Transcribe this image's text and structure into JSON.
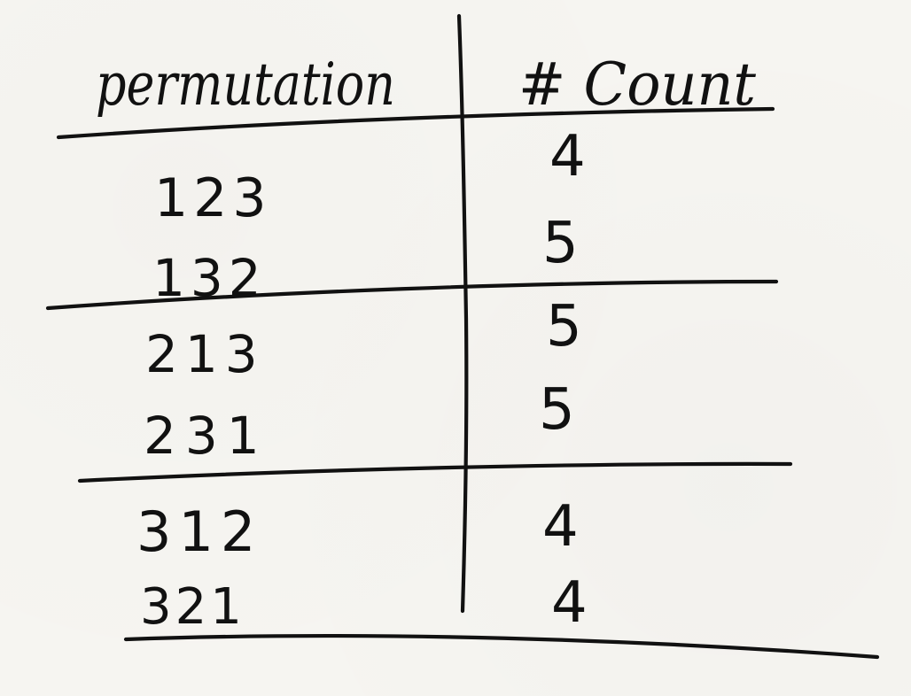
{
  "table": {
    "headers": {
      "permutation": "permutation",
      "count": "# Count"
    },
    "rows": [
      {
        "permutation": "123",
        "count": "4"
      },
      {
        "permutation": "132",
        "count": "5"
      },
      {
        "permutation": "213",
        "count": "5"
      },
      {
        "permutation": "231",
        "count": "5"
      },
      {
        "permutation": "312",
        "count": "4"
      },
      {
        "permutation": "321",
        "count": "4"
      }
    ]
  },
  "colors": {
    "ink": "#111111",
    "paper": "#f6f5f1"
  }
}
